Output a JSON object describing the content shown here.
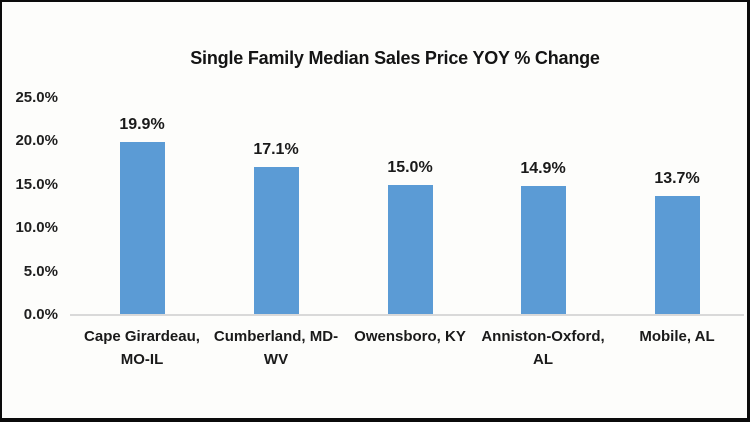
{
  "chart_data": {
    "type": "bar",
    "title": "Single Family Median Sales Price YOY % Change",
    "categories": [
      "Cape Girardeau, MO-IL",
      "Cumberland, MD-WV",
      "Owensboro, KY",
      "Anniston-Oxford, AL",
      "Mobile, AL"
    ],
    "category_lines": [
      [
        "Cape Girardeau,",
        "MO-IL"
      ],
      [
        "Cumberland, MD-",
        "WV"
      ],
      [
        "Owensboro, KY"
      ],
      [
        "Anniston-Oxford,",
        "AL"
      ],
      [
        "Mobile, AL"
      ]
    ],
    "values": [
      19.9,
      17.1,
      15.0,
      14.9,
      13.7
    ],
    "data_labels": [
      "19.9%",
      "17.1%",
      "15.0%",
      "14.9%",
      "13.7%"
    ],
    "y_ticks": [
      {
        "label": "25.0%",
        "value": 25
      },
      {
        "label": "20.0%",
        "value": 20
      },
      {
        "label": "15.0%",
        "value": 15
      },
      {
        "label": "10.0%",
        "value": 10
      },
      {
        "label": "5.0%",
        "value": 5
      },
      {
        "label": "0.0%",
        "value": 0
      }
    ],
    "ylim": [
      0,
      25
    ],
    "xlabel": "",
    "ylabel": "",
    "grid": false,
    "legend": "none",
    "colors": {
      "bar": "#5B9BD5",
      "axis_line": "#D9D9D9",
      "text": "#1a1a1a",
      "background": "#FDFDFB",
      "border": "#0b0b0b"
    }
  }
}
